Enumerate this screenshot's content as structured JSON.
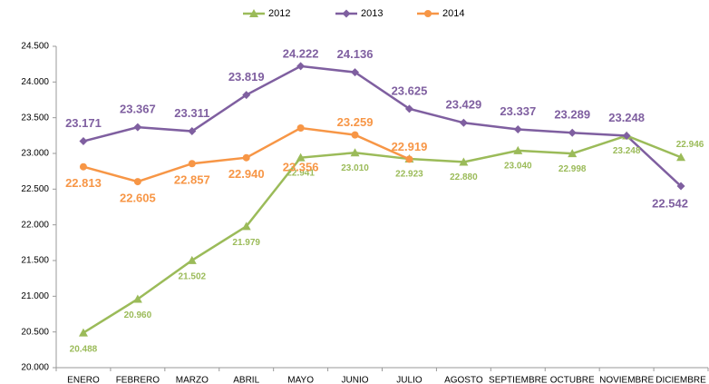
{
  "chart_data": {
    "type": "line",
    "categories": [
      "ENERO",
      "FEBRERO",
      "MARZO",
      "ABRIL",
      "MAYO",
      "JUNIO",
      "JULIO",
      "AGOSTO",
      "SEPTIEMBRE",
      "OCTUBRE",
      "NOVIEMBRE",
      "DICIEMBRE"
    ],
    "series": [
      {
        "name": "2012",
        "color": "#9bbb59",
        "marker": "triangle",
        "values": [
          20488,
          20960,
          21502,
          21979,
          22941,
          23010,
          22923,
          22880,
          23040,
          22998,
          23248,
          22946
        ],
        "value_labels": [
          "20.488",
          "20.960",
          "21.502",
          "21.979",
          "22.941",
          "23.010",
          "22.923",
          "22.880",
          "23.040",
          "22.998",
          "23.248",
          "22.946"
        ]
      },
      {
        "name": "2013",
        "color": "#7f5fa0",
        "marker": "diamond",
        "values": [
          23171,
          23367,
          23311,
          23819,
          24222,
          24136,
          23625,
          23429,
          23337,
          23289,
          23248,
          22542
        ],
        "value_labels": [
          "23.171",
          "23.367",
          "23.311",
          "23.819",
          "24.222",
          "24.136",
          "23.625",
          "23.429",
          "23.337",
          "23.289",
          "23.248",
          "22.542"
        ]
      },
      {
        "name": "2014",
        "color": "#f79646",
        "marker": "circle",
        "values": [
          22813,
          22605,
          22857,
          22940,
          23356,
          23259,
          22919,
          null,
          null,
          null,
          null,
          null
        ],
        "value_labels": [
          "22.813",
          "22.605",
          "22.857",
          "22.940",
          "23.356",
          "23.259",
          "22.919",
          null,
          null,
          null,
          null,
          null
        ]
      }
    ],
    "ylim": [
      20000,
      24500
    ],
    "yticks": [
      {
        "value": 20000,
        "label": "20.000"
      },
      {
        "value": 20500,
        "label": "20.500"
      },
      {
        "value": 21000,
        "label": "21.000"
      },
      {
        "value": 21500,
        "label": "21.500"
      },
      {
        "value": 22000,
        "label": "22.000"
      },
      {
        "value": 22500,
        "label": "22.500"
      },
      {
        "value": 23000,
        "label": "23.000"
      },
      {
        "value": 23500,
        "label": "23.500"
      },
      {
        "value": 24000,
        "label": "24.000"
      },
      {
        "value": 24500,
        "label": "24.500"
      }
    ],
    "grid": false,
    "legend": "top"
  }
}
